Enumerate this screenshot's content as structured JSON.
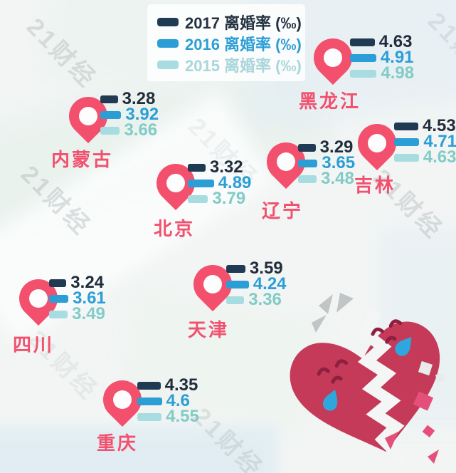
{
  "watermark": "21财经",
  "legend": {
    "items": [
      {
        "label": "2017 离婚率 (‰)",
        "color": "#203c55"
      },
      {
        "label": "2016 离婚率 (‰)",
        "color": "#2c9ed6"
      },
      {
        "label": "2015 离婚率 (‰)",
        "color": "#a7dce0"
      }
    ]
  },
  "locations": [
    {
      "name": "黑龙江",
      "values": {
        "y2017": "4.63",
        "y2016": "4.91",
        "y2015": "4.98"
      }
    },
    {
      "name": "内蒙古",
      "values": {
        "y2017": "3.28",
        "y2016": "3.92",
        "y2015": "3.66"
      }
    },
    {
      "name": "吉林",
      "values": {
        "y2017": "4.53",
        "y2016": "4.71",
        "y2015": "4.63"
      }
    },
    {
      "name": "辽宁",
      "values": {
        "y2017": "3.29",
        "y2016": "3.65",
        "y2015": "3.48"
      }
    },
    {
      "name": "北京",
      "values": {
        "y2017": "3.32",
        "y2016": "4.89",
        "y2015": "3.79"
      }
    },
    {
      "name": "天津",
      "values": {
        "y2017": "3.59",
        "y2016": "4.24",
        "y2015": "3.36"
      }
    },
    {
      "name": "四川",
      "values": {
        "y2017": "3.24",
        "y2016": "3.61",
        "y2015": "3.49"
      }
    },
    {
      "name": "重庆",
      "values": {
        "y2017": "4.35",
        "y2016": "4.6",
        "y2015": "4.55"
      }
    }
  ],
  "colors": {
    "pin": "#f3506d",
    "label": "#f2506e",
    "bar_2017": "#1f3a52",
    "bar_2016": "#2c9ed6",
    "bar_2015": "#a7dce0",
    "heart": "#c43a58",
    "tear": "#2fa7de",
    "fragment": "#e4507a"
  },
  "chart_data": {
    "type": "bar",
    "title": "离婚率 (‰)",
    "categories": [
      "黑龙江",
      "内蒙古",
      "吉林",
      "辽宁",
      "北京",
      "天津",
      "四川",
      "重庆"
    ],
    "series": [
      {
        "name": "2017 离婚率 (‰)",
        "values": [
          4.63,
          3.28,
          4.53,
          3.29,
          3.32,
          3.59,
          3.24,
          4.35
        ]
      },
      {
        "name": "2016 离婚率 (‰)",
        "values": [
          4.91,
          3.92,
          4.71,
          3.65,
          4.89,
          4.24,
          3.61,
          4.6
        ]
      },
      {
        "name": "2015 离婚率 (‰)",
        "values": [
          4.98,
          3.66,
          4.63,
          3.48,
          3.79,
          3.36,
          3.49,
          4.55
        ]
      }
    ],
    "legend_position": "top-left",
    "grid": false,
    "layout": "map-overlay"
  }
}
